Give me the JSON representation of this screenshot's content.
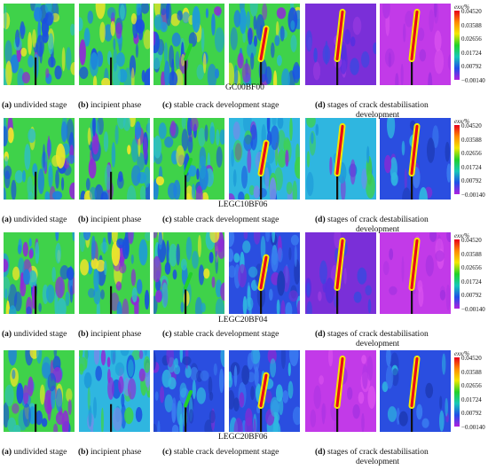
{
  "figure": {
    "rows": [
      {
        "specimen": "GC00BF00",
        "captions": [
          {
            "letter": "(a)",
            "text": " undivided stage"
          },
          {
            "letter": "(b)",
            "text": " incipient phase"
          },
          {
            "letter": "(c)",
            "text": " stable crack development stage"
          },
          {
            "letter": "(d)",
            "text": " stages of crack destabilisation",
            "line2": "development"
          }
        ]
      },
      {
        "specimen": "LEGC10BF06",
        "captions": [
          {
            "letter": "(a)",
            "text": " undivided stage"
          },
          {
            "letter": "(b)",
            "text": " incipient phase"
          },
          {
            "letter": "(c)",
            "text": " stable crack development stage"
          },
          {
            "letter": "(d)",
            "text": " stages of crack destabilisation",
            "line2": "development"
          }
        ]
      },
      {
        "specimen": "LEGC20BF04",
        "captions": [
          {
            "letter": "(a)",
            "text": " undivided stage"
          },
          {
            "letter": "(b)",
            "text": " incipient phase"
          },
          {
            "letter": "(c)",
            "text": " stable crack development stage"
          },
          {
            "letter": "(d)",
            "text": " stages of crack destabilisation",
            "line2": "development"
          }
        ]
      },
      {
        "specimen": "LEGC20BF06",
        "captions": [
          {
            "letter": "(a)",
            "text": " undivided stage"
          },
          {
            "letter": "(b)",
            "text": " incipient phase"
          },
          {
            "letter": "(c)",
            "text": " stable crack development stage"
          },
          {
            "letter": "(d)",
            "text": " stages of crack destabilisation",
            "line2": "development"
          }
        ]
      }
    ],
    "colorbar": {
      "title": "exx/%",
      "ticks": [
        "0.04520",
        "0.03588",
        "0.02656",
        "0.01724",
        "0.00792",
        "−0.00140"
      ],
      "colors": [
        "#e8001c",
        "#ff8a00",
        "#f3e800",
        "#22d12a",
        "#17c9b8",
        "#1f4fe8",
        "#b21fe0"
      ]
    }
  }
}
